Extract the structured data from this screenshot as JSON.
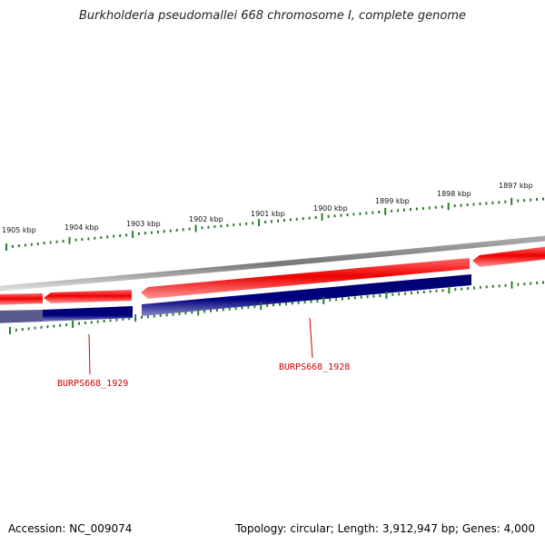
{
  "title": "Burkholderia pseudomallei 668 chromosome I, complete genome",
  "footer": {
    "accession": "Accession: NC_009074",
    "topology": "Topology: circular; Length: 3,912,947 bp; Genes: 4,000"
  },
  "colors": {
    "backbone": "#888888",
    "forward_gene": "#ee0000",
    "reverse_gene": "#000080",
    "tick": "#2a7d2a",
    "gene_label": "#cc0000"
  },
  "ticks": [
    {
      "label": "1905 kbp"
    },
    {
      "label": "1904 kbp"
    },
    {
      "label": "1903 kbp"
    },
    {
      "label": "1902 kbp"
    },
    {
      "label": "1901 kbp"
    },
    {
      "label": "1900 kbp"
    },
    {
      "label": "1899 kbp"
    },
    {
      "label": "1898 kbp"
    },
    {
      "label": "1897 kbp"
    }
  ],
  "gene_labels": [
    {
      "name": "BURPS668_1929"
    },
    {
      "name": "BURPS668_1928"
    }
  ]
}
